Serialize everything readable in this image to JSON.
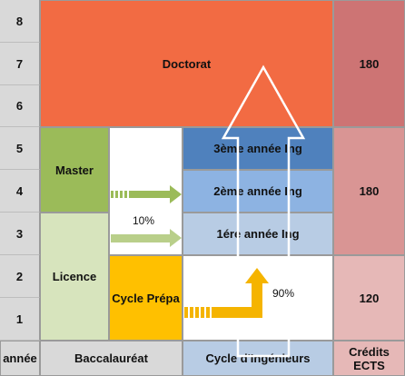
{
  "years": [
    "8",
    "7",
    "6",
    "5",
    "4",
    "3",
    "2",
    "1"
  ],
  "footer": {
    "year_label": "année",
    "bac": "Baccalauréat",
    "engineer_cycle": "Cycle d'Ingénieurs",
    "ects": "Crédits ECTS"
  },
  "blocks": {
    "doctorat": "Doctorat",
    "master": "Master",
    "licence": "Licence",
    "prepa": "Cycle Prépa",
    "ing3": "3ème année Ing",
    "ing2": "2ème année Ing",
    "ing1": "1ére année Ing"
  },
  "credits": {
    "doctorat": "180",
    "master_ing": "180",
    "prepa_licence": "120"
  },
  "percentages": {
    "licence_to_ing": "10%",
    "prepa_to_ing": "90%"
  },
  "colors": {
    "doctorat": "#f26b43",
    "credit_top": "#cd7474",
    "credit_mid": "#d99594",
    "credit_low": "#e6b8b7",
    "master": "#9bbb59",
    "licence": "#d7e4bd",
    "prepa": "#ffc000",
    "ing3": "#4f81bd",
    "ing2": "#8db3e2",
    "ing1": "#b8cce4",
    "arrow_green": "#9bbb59",
    "arrow_orange": "#f5b400"
  }
}
